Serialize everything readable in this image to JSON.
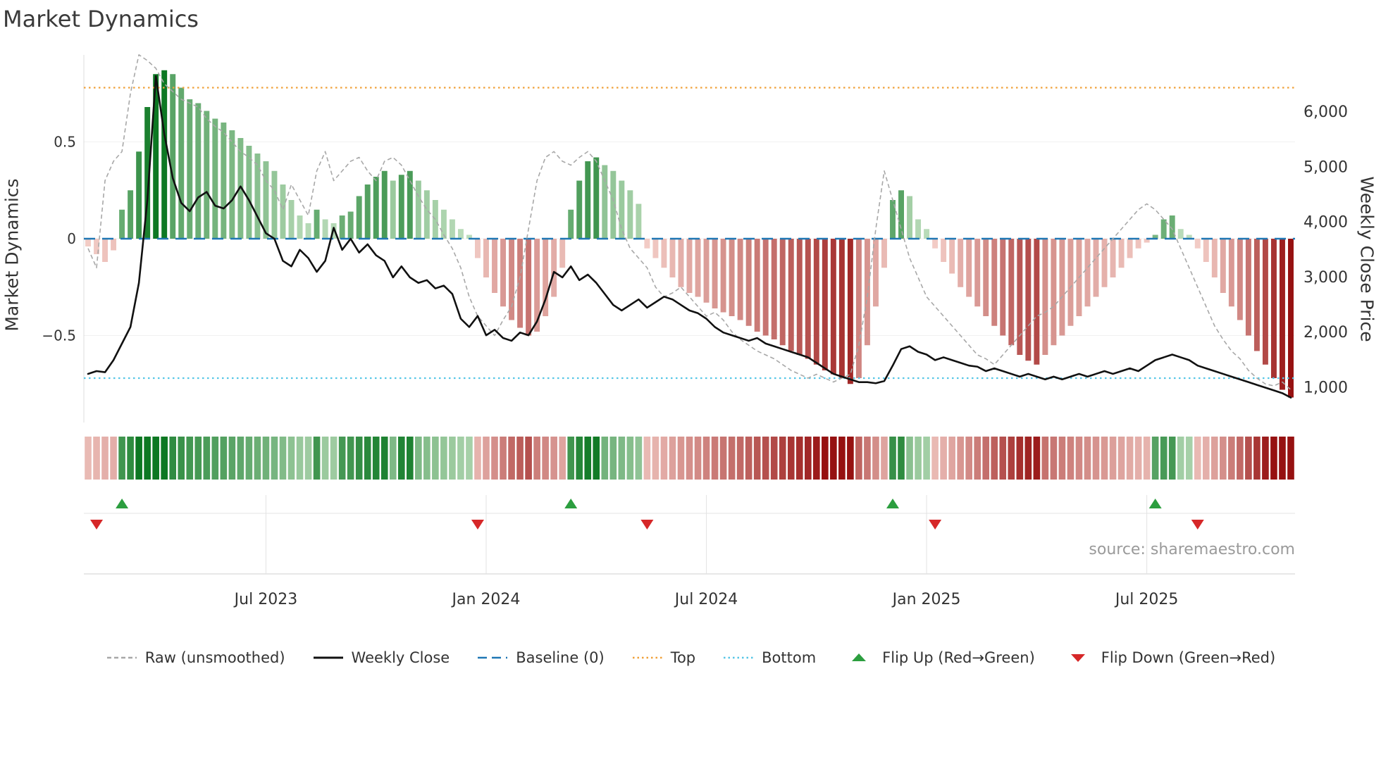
{
  "title": "Market Dynamics",
  "axes": {
    "left_label": "Market Dynamics",
    "right_label": "Weekly Close Price"
  },
  "source": "source: sharemaestro.com",
  "legend": [
    {
      "label": "Raw (unsmoothed)",
      "glyph": "dashed-line",
      "color": "#a8a8a8"
    },
    {
      "label": "Weekly Close",
      "glyph": "solid-line",
      "color": "#111111"
    },
    {
      "label": "Baseline (0)",
      "glyph": "long-dash-line",
      "color": "#1f77b4"
    },
    {
      "label": "Top",
      "glyph": "dotted-line",
      "color": "#f0a13a"
    },
    {
      "label": "Bottom",
      "glyph": "dotted-line",
      "color": "#55c6e6"
    },
    {
      "label": "Flip Up (Red→Green)",
      "glyph": "triangle-up",
      "color": "#2c9e3f"
    },
    {
      "label": "Flip Down (Green→Red)",
      "glyph": "triangle-down",
      "color": "#d62728"
    }
  ],
  "chart_data": {
    "type": "bar",
    "subtype": "oscillator-bars with dual-axis overlay lines, momentum heatmap strip and flip markers",
    "frequency": "weekly",
    "start_date": "2023-02-06",
    "x_ticks": [
      {
        "index": 21,
        "label": "Jul 2023"
      },
      {
        "index": 47,
        "label": "Jan 2024"
      },
      {
        "index": 73,
        "label": "Jul 2024"
      },
      {
        "index": 99,
        "label": "Jan 2025"
      },
      {
        "index": 125,
        "label": "Jul 2025"
      }
    ],
    "left_axis": {
      "label": "Market Dynamics",
      "range": [
        -0.95,
        0.95
      ],
      "ticks": [
        {
          "value": 0.5,
          "label": "0.5"
        },
        {
          "value": 0,
          "label": "0"
        },
        {
          "value": -0.5,
          "label": "−0.5"
        }
      ]
    },
    "right_axis": {
      "label": "Weekly Close Price",
      "range": [
        360,
        7040
      ],
      "ticks": [
        {
          "value": 6000,
          "label": "6,000"
        },
        {
          "value": 5000,
          "label": "5,000"
        },
        {
          "value": 4000,
          "label": "4,000"
        },
        {
          "value": 3000,
          "label": "3,000"
        },
        {
          "value": 2000,
          "label": "2,000"
        },
        {
          "value": 1000,
          "label": "1,000"
        }
      ]
    },
    "baseline": 0,
    "top_line": 0.78,
    "bottom_line": -0.72,
    "series": {
      "oscillator": [
        -0.04,
        -0.08,
        -0.12,
        -0.06,
        0.15,
        0.25,
        0.45,
        0.68,
        0.85,
        0.87,
        0.85,
        0.78,
        0.72,
        0.7,
        0.66,
        0.62,
        0.6,
        0.56,
        0.52,
        0.48,
        0.44,
        0.4,
        0.35,
        0.28,
        0.2,
        0.12,
        0.08,
        0.15,
        0.1,
        0.08,
        0.12,
        0.14,
        0.22,
        0.28,
        0.32,
        0.35,
        0.3,
        0.33,
        0.35,
        0.3,
        0.25,
        0.2,
        0.15,
        0.1,
        0.05,
        0.02,
        -0.1,
        -0.2,
        -0.28,
        -0.35,
        -0.42,
        -0.46,
        -0.5,
        -0.48,
        -0.4,
        -0.3,
        -0.15,
        0.15,
        0.3,
        0.4,
        0.42,
        0.38,
        0.35,
        0.3,
        0.25,
        0.18,
        -0.05,
        -0.1,
        -0.15,
        -0.2,
        -0.25,
        -0.28,
        -0.3,
        -0.33,
        -0.36,
        -0.38,
        -0.4,
        -0.42,
        -0.45,
        -0.48,
        -0.5,
        -0.52,
        -0.55,
        -0.58,
        -0.6,
        -0.62,
        -0.65,
        -0.68,
        -0.7,
        -0.72,
        -0.75,
        -0.72,
        -0.55,
        -0.35,
        -0.15,
        0.2,
        0.25,
        0.22,
        0.1,
        0.05,
        -0.05,
        -0.12,
        -0.18,
        -0.25,
        -0.3,
        -0.35,
        -0.4,
        -0.45,
        -0.5,
        -0.55,
        -0.6,
        -0.63,
        -0.65,
        -0.6,
        -0.55,
        -0.5,
        -0.45,
        -0.4,
        -0.35,
        -0.3,
        -0.25,
        -0.2,
        -0.15,
        -0.1,
        -0.05,
        -0.02,
        0.02,
        0.1,
        0.12,
        0.05,
        0.02,
        -0.05,
        -0.12,
        -0.2,
        -0.28,
        -0.35,
        -0.42,
        -0.5,
        -0.58,
        -0.65,
        -0.72,
        -0.78,
        -0.82
      ],
      "raw": [
        -0.05,
        -0.15,
        0.3,
        0.4,
        0.45,
        0.75,
        0.95,
        0.92,
        0.88,
        0.8,
        0.76,
        0.72,
        0.7,
        0.68,
        0.62,
        0.58,
        0.55,
        0.5,
        0.45,
        0.42,
        0.38,
        0.3,
        0.25,
        0.15,
        0.28,
        0.2,
        0.12,
        0.35,
        0.45,
        0.3,
        0.35,
        0.4,
        0.42,
        0.35,
        0.3,
        0.4,
        0.42,
        0.38,
        0.3,
        0.22,
        0.15,
        0.1,
        0.02,
        -0.05,
        -0.15,
        -0.3,
        -0.4,
        -0.45,
        -0.5,
        -0.42,
        -0.35,
        -0.2,
        0.05,
        0.3,
        0.42,
        0.45,
        0.4,
        0.38,
        0.42,
        0.45,
        0.4,
        0.3,
        0.2,
        0.05,
        -0.05,
        -0.1,
        -0.15,
        -0.25,
        -0.3,
        -0.28,
        -0.25,
        -0.3,
        -0.35,
        -0.4,
        -0.38,
        -0.42,
        -0.48,
        -0.52,
        -0.55,
        -0.58,
        -0.6,
        -0.62,
        -0.65,
        -0.68,
        -0.7,
        -0.72,
        -0.7,
        -0.72,
        -0.74,
        -0.72,
        -0.7,
        -0.55,
        -0.3,
        0.05,
        0.35,
        0.2,
        0.05,
        -0.1,
        -0.2,
        -0.3,
        -0.35,
        -0.4,
        -0.45,
        -0.5,
        -0.55,
        -0.6,
        -0.62,
        -0.65,
        -0.6,
        -0.55,
        -0.5,
        -0.45,
        -0.4,
        -0.38,
        -0.35,
        -0.3,
        -0.25,
        -0.2,
        -0.15,
        -0.1,
        -0.05,
        0,
        0.05,
        0.1,
        0.15,
        0.18,
        0.15,
        0.1,
        0.05,
        -0.05,
        -0.15,
        -0.25,
        -0.35,
        -0.45,
        -0.52,
        -0.58,
        -0.62,
        -0.68,
        -0.72,
        -0.75,
        -0.76,
        -0.74,
        -0.78
      ],
      "weekly_close": [
        1250,
        1300,
        1280,
        1500,
        1800,
        2100,
        2900,
        4400,
        6650,
        5600,
        4800,
        4350,
        4200,
        4450,
        4550,
        4300,
        4250,
        4400,
        4650,
        4400,
        4100,
        3800,
        3700,
        3300,
        3200,
        3500,
        3350,
        3100,
        3300,
        3900,
        3500,
        3700,
        3450,
        3600,
        3400,
        3300,
        3000,
        3200,
        3000,
        2900,
        2950,
        2800,
        2850,
        2700,
        2250,
        2100,
        2300,
        1950,
        2050,
        1900,
        1850,
        2000,
        1950,
        2200,
        2600,
        3100,
        3000,
        3200,
        2950,
        3050,
        2900,
        2700,
        2500,
        2400,
        2500,
        2600,
        2450,
        2550,
        2650,
        2600,
        2500,
        2400,
        2350,
        2250,
        2100,
        2000,
        1950,
        1900,
        1850,
        1900,
        1800,
        1750,
        1700,
        1650,
        1600,
        1550,
        1450,
        1350,
        1250,
        1200,
        1150,
        1100,
        1100,
        1080,
        1120,
        1400,
        1700,
        1750,
        1650,
        1600,
        1500,
        1550,
        1500,
        1450,
        1400,
        1380,
        1300,
        1350,
        1300,
        1250,
        1200,
        1250,
        1200,
        1150,
        1200,
        1150,
        1200,
        1250,
        1200,
        1250,
        1300,
        1250,
        1300,
        1350,
        1300,
        1400,
        1500,
        1550,
        1600,
        1550,
        1500,
        1400,
        1350,
        1300,
        1250,
        1200,
        1150,
        1100,
        1050,
        1000,
        950,
        900,
        820
      ]
    },
    "flip_up_indices": [
      4,
      57,
      95,
      126
    ],
    "flip_down_indices": [
      1,
      46,
      66,
      100,
      131
    ],
    "colors": {
      "bar_green_dark": "#0d7823",
      "bar_green_light": "#d6ecd2",
      "bar_red_dark": "#961111",
      "bar_red_light": "#f8d8d1",
      "raw_line": "#a8a8a8",
      "close_line": "#111111",
      "baseline": "#1f77b4",
      "top_line": "#f0a13a",
      "bottom_line": "#55c6e6",
      "flip_up": "#2c9e3f",
      "flip_down": "#d62728",
      "grid": "#e3e3e3",
      "tick_text": "#333333"
    }
  }
}
